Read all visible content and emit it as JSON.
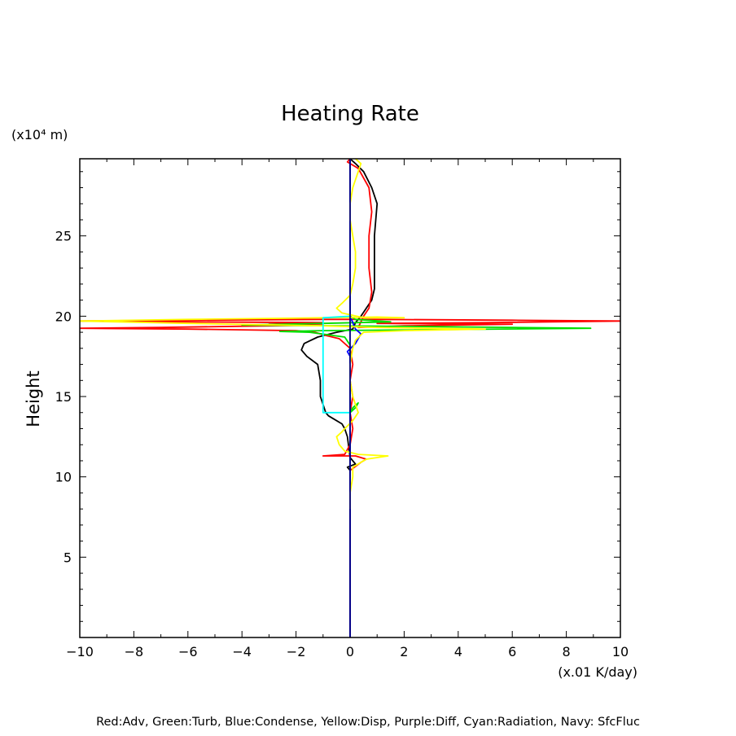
{
  "chart_data": {
    "type": "line",
    "title": "Heating Rate",
    "ylabel": "Height",
    "y_unit": "(x10⁴ m)",
    "x_unit": "(x.01 K/day)",
    "xlim": [
      -10,
      10
    ],
    "ylim": [
      0,
      29.8
    ],
    "x_ticks": [
      -10,
      -8,
      -6,
      -4,
      -2,
      0,
      2,
      4,
      6,
      8,
      10
    ],
    "x_tick_labels": [
      "−10",
      "−8",
      "−6",
      "−4",
      "−2",
      "0",
      "2",
      "4",
      "6",
      "8",
      "10"
    ],
    "y_ticks": [
      5,
      10,
      15,
      20,
      25
    ],
    "y_tick_labels": [
      "5",
      "10",
      "15",
      "20",
      "25"
    ],
    "footer": "Red:Adv, Green:Turb, Blue:Condense, Yellow:Disp, Purple:Diff, Cyan:Radiation, Navy: SfcFluc",
    "series": [
      {
        "color": "#000000",
        "points": [
          [
            0,
            0
          ],
          [
            0,
            10.4
          ],
          [
            -0.1,
            10.6
          ],
          [
            0.2,
            10.8
          ],
          [
            0,
            11.2
          ],
          [
            -0.1,
            12.5
          ],
          [
            -0.2,
            13.0
          ],
          [
            -0.3,
            13.3
          ],
          [
            -0.6,
            13.6
          ],
          [
            -0.8,
            13.8
          ],
          [
            -0.9,
            14.0
          ],
          [
            -1.0,
            14.5
          ],
          [
            -1.1,
            15.0
          ],
          [
            -1.1,
            16.0
          ],
          [
            -1.2,
            17.0
          ],
          [
            -1.6,
            17.5
          ],
          [
            -1.8,
            17.9
          ],
          [
            -1.7,
            18.3
          ],
          [
            -1.2,
            18.7
          ],
          [
            -0.5,
            19.0
          ],
          [
            0.1,
            19.2
          ],
          [
            0.2,
            19.6
          ],
          [
            0.4,
            20.0
          ],
          [
            0.8,
            21.0
          ],
          [
            0.9,
            21.7
          ],
          [
            0.9,
            23.0
          ],
          [
            0.9,
            25.0
          ],
          [
            1.0,
            27.0
          ],
          [
            0.8,
            28.0
          ],
          [
            0.5,
            29.0
          ],
          [
            0.2,
            29.5
          ],
          [
            0,
            29.8
          ]
        ]
      },
      {
        "color": "#ff0000",
        "points": [
          [
            0,
            0
          ],
          [
            0,
            10.4
          ],
          [
            0.4,
            10.9
          ],
          [
            0.6,
            11.1
          ],
          [
            0.2,
            11.3
          ],
          [
            -1.0,
            11.3
          ],
          [
            -0.2,
            11.4
          ],
          [
            0,
            12.0
          ],
          [
            0.1,
            13.0
          ],
          [
            0,
            14.0
          ],
          [
            0.1,
            15.0
          ],
          [
            0,
            16.0
          ],
          [
            0.1,
            17.0
          ],
          [
            0,
            18.0
          ],
          [
            -0.4,
            18.6
          ],
          [
            -0.9,
            18.8
          ],
          [
            -1.3,
            19.0
          ],
          [
            -2.0,
            19.1
          ],
          [
            -6.0,
            19.2
          ],
          [
            -10.0,
            19.25
          ],
          [
            -7.0,
            19.3
          ],
          [
            -3.0,
            19.4
          ],
          [
            -1.0,
            19.45
          ],
          [
            -3.0,
            19.5
          ],
          [
            -1.0,
            19.6
          ],
          [
            -6.0,
            19.65
          ],
          [
            -10.0,
            19.7
          ],
          [
            -6.0,
            19.75
          ],
          [
            -0.8,
            19.8
          ],
          [
            0.9,
            19.8
          ],
          [
            6.0,
            19.75
          ],
          [
            10.0,
            19.7
          ],
          [
            5.0,
            19.6
          ],
          [
            1.0,
            19.55
          ],
          [
            6.0,
            19.5
          ],
          [
            2.0,
            19.4
          ],
          [
            0.3,
            19.3
          ],
          [
            0.5,
            20.0
          ],
          [
            0.7,
            20.5
          ],
          [
            0.8,
            21.5
          ],
          [
            0.7,
            23.0
          ],
          [
            0.7,
            25.0
          ],
          [
            0.8,
            26.5
          ],
          [
            0.7,
            28.0
          ],
          [
            0.3,
            29.2
          ],
          [
            -0.1,
            29.6
          ],
          [
            0,
            29.8
          ]
        ]
      },
      {
        "color": "#00dd00",
        "points": [
          [
            0,
            14.0
          ],
          [
            0.1,
            14.3
          ],
          [
            0.3,
            14.6
          ],
          [
            0.2,
            14.3
          ],
          [
            0,
            14.0
          ],
          [
            0,
            15.0
          ],
          [
            0,
            18.2
          ],
          [
            -0.2,
            18.7
          ],
          [
            -1.5,
            19.0
          ],
          [
            -2.6,
            19.05
          ],
          [
            -1.0,
            19.1
          ],
          [
            8.9,
            19.25
          ],
          [
            3.0,
            19.35
          ],
          [
            -4.0,
            19.45
          ],
          [
            -1.0,
            19.55
          ],
          [
            1.5,
            19.65
          ],
          [
            0.2,
            19.8
          ],
          [
            0,
            20.0
          ],
          [
            0,
            21.0
          ]
        ]
      },
      {
        "color": "#0000ff",
        "points": [
          [
            0,
            0
          ],
          [
            0,
            17.5
          ],
          [
            -0.1,
            17.8
          ],
          [
            0.2,
            18.3
          ],
          [
            0.4,
            18.9
          ],
          [
            0.2,
            19.2
          ],
          [
            0.1,
            19.6
          ],
          [
            0,
            20.0
          ],
          [
            0,
            29.8
          ]
        ]
      },
      {
        "color": "#ffff00",
        "points": [
          [
            0,
            8.0
          ],
          [
            0,
            9.0
          ],
          [
            0.1,
            10.0
          ],
          [
            0.1,
            10.6
          ],
          [
            0.6,
            11.1
          ],
          [
            1.4,
            11.3
          ],
          [
            0.3,
            11.4
          ],
          [
            -0.2,
            11.6
          ],
          [
            -0.4,
            12.0
          ],
          [
            -0.5,
            12.5
          ],
          [
            -0.3,
            12.8
          ],
          [
            -0.2,
            13.0
          ],
          [
            0.1,
            13.5
          ],
          [
            0.3,
            14.0
          ],
          [
            0.2,
            14.5
          ],
          [
            0.1,
            15.0
          ],
          [
            0,
            16.0
          ],
          [
            0,
            17.0
          ],
          [
            0.1,
            18.0
          ],
          [
            0.2,
            18.5
          ],
          [
            0.5,
            19.0
          ],
          [
            2.0,
            19.1
          ],
          [
            5.0,
            19.2
          ],
          [
            1.0,
            19.3
          ],
          [
            -1.0,
            19.4
          ],
          [
            -6.0,
            19.55
          ],
          [
            -10.0,
            19.7
          ],
          [
            -6.0,
            19.8
          ],
          [
            -1.0,
            19.9
          ],
          [
            1.0,
            19.95
          ],
          [
            2.0,
            19.9
          ],
          [
            0.5,
            19.9
          ],
          [
            -0.3,
            20.2
          ],
          [
            -0.5,
            20.5
          ],
          [
            -0.3,
            20.8
          ],
          [
            0,
            21.3
          ],
          [
            0.1,
            22.0
          ],
          [
            0.2,
            23.0
          ],
          [
            0.2,
            24.0
          ],
          [
            0.1,
            25.0
          ],
          [
            0,
            26.0
          ],
          [
            0,
            27.0
          ],
          [
            0.1,
            28.0
          ],
          [
            0.3,
            29.0
          ],
          [
            0.4,
            29.5
          ],
          [
            0.2,
            29.8
          ]
        ]
      },
      {
        "color": "#00ffff",
        "points": [
          [
            0,
            14.0
          ],
          [
            -1.0,
            14.0
          ],
          [
            -1.0,
            15.5
          ],
          [
            -1.0,
            18.0
          ],
          [
            -1.0,
            19.9
          ],
          [
            0,
            20.0
          ]
        ]
      }
    ]
  }
}
